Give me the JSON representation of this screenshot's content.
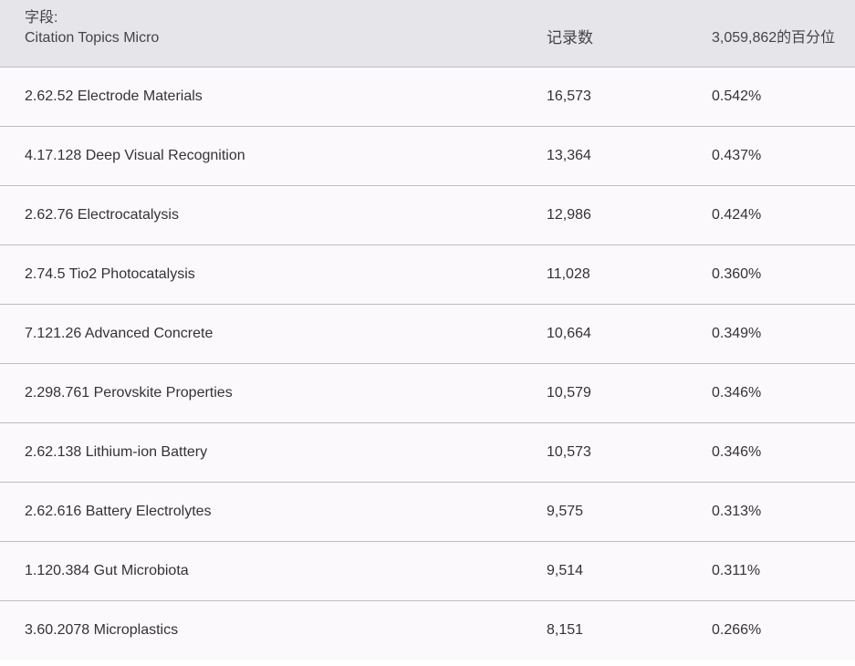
{
  "table": {
    "header": {
      "field_label": "字段:",
      "field_value": "Citation Topics Micro",
      "count_label": "记录数",
      "percent_label": "3,059,862的百分位"
    },
    "rows": [
      {
        "name": "2.62.52 Electrode Materials",
        "count": "16,573",
        "percent": "0.542%"
      },
      {
        "name": "4.17.128 Deep Visual Recognition",
        "count": "13,364",
        "percent": "0.437%"
      },
      {
        "name": "2.62.76 Electrocatalysis",
        "count": "12,986",
        "percent": "0.424%"
      },
      {
        "name": "2.74.5 Tio2 Photocatalysis",
        "count": "11,028",
        "percent": "0.360%"
      },
      {
        "name": "7.121.26 Advanced Concrete",
        "count": "10,664",
        "percent": "0.349%"
      },
      {
        "name": "2.298.761 Perovskite Properties",
        "count": "10,579",
        "percent": "0.346%"
      },
      {
        "name": "2.62.138 Lithium-ion Battery",
        "count": "10,573",
        "percent": "0.346%"
      },
      {
        "name": "2.62.616 Battery Electrolytes",
        "count": "9,575",
        "percent": "0.313%"
      },
      {
        "name": "1.120.384 Gut Microbiota",
        "count": "9,514",
        "percent": "0.311%"
      },
      {
        "name": "3.60.2078 Microplastics",
        "count": "8,151",
        "percent": "0.266%"
      }
    ]
  }
}
